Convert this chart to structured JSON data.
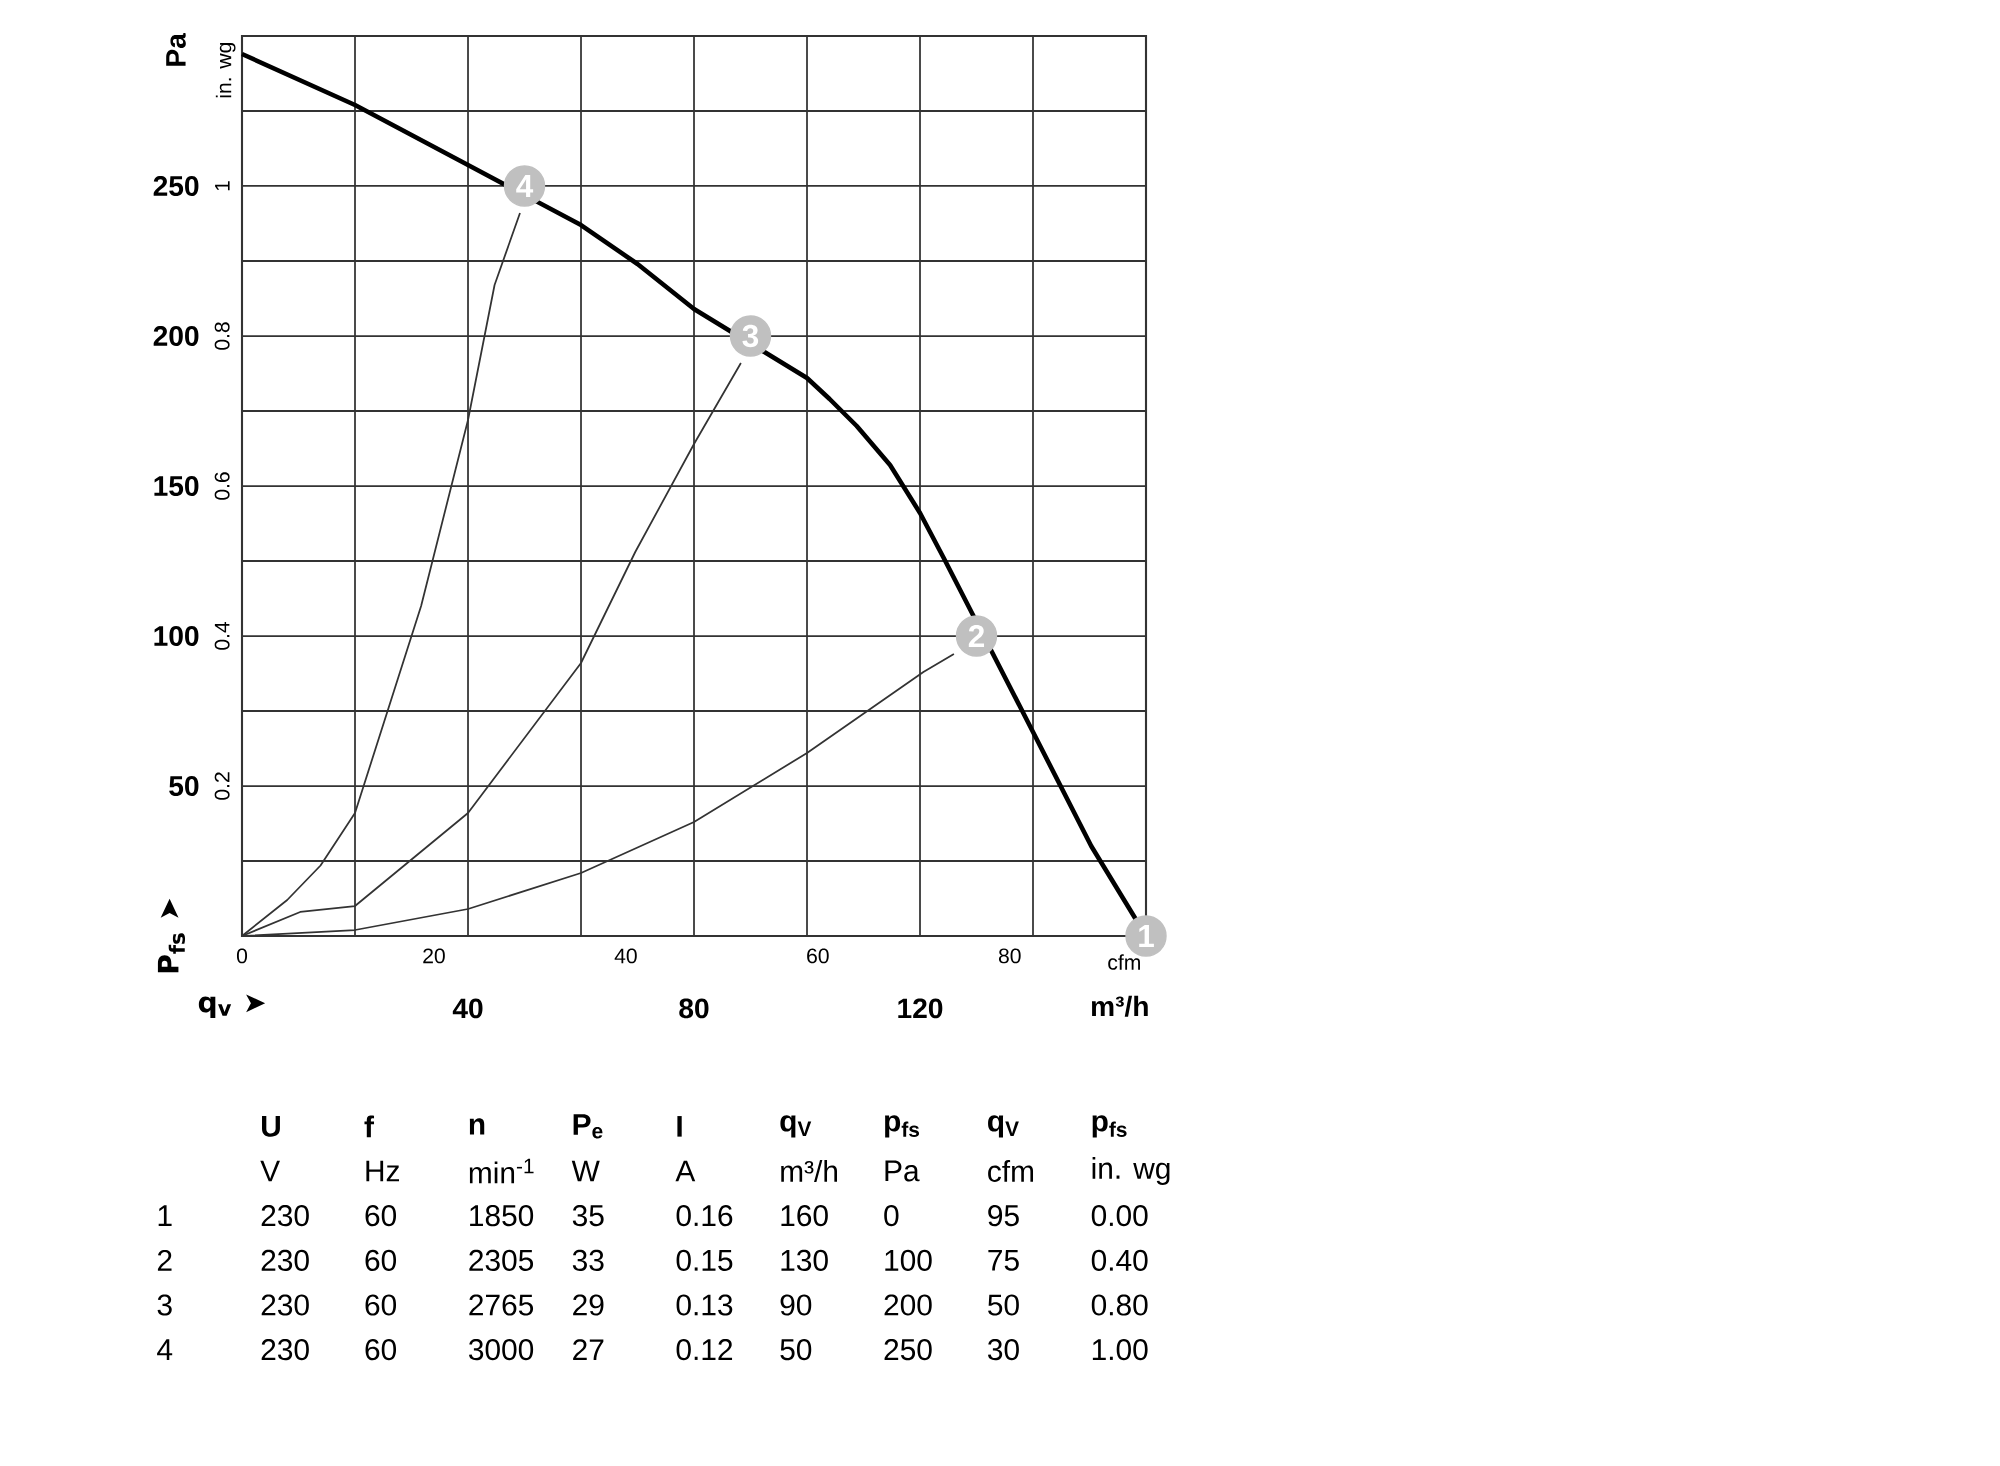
{
  "chart_data": [
    {
      "type": "line",
      "xlabel": "m³/h",
      "ylabel": "Pa",
      "x2label": "cfm",
      "y2label": "in. wg",
      "xlim": [
        0,
        160
      ],
      "xticks": [
        {
          "value": 20,
          "label": null
        },
        40,
        {
          "value": 60,
          "label": null
        },
        80,
        {
          "value": 100,
          "label": null
        },
        120,
        {
          "value": 140,
          "label": null
        }
      ],
      "ylim": [
        0,
        300
      ],
      "yticks": [
        {
          "value": 25,
          "label": null
        },
        50,
        {
          "value": 75,
          "label": null
        },
        100,
        {
          "value": 125,
          "label": null
        },
        150,
        {
          "value": 175,
          "label": null
        },
        200,
        {
          "value": 225,
          "label": null
        },
        250,
        {
          "value": 275,
          "label": null
        }
      ],
      "x2lim": [
        0,
        94.2
      ],
      "x2ticks": [
        0,
        20,
        40,
        60,
        80
      ],
      "y2lim": [
        0,
        1.2
      ],
      "y2ticks": [
        0.2,
        0.4,
        0.6,
        0.8,
        1
      ],
      "grid": true,
      "annotations": [
        "P$_{fs}$ ➤",
        "q$_{v}$ ➤",
        "1",
        "2",
        "3",
        "4",
        "U",
        "f",
        "n",
        "P$_{e}$",
        "I",
        "q$_{V}$",
        "p$_{fs}$",
        "q$_{V}$",
        "p$_{fs}$",
        "V",
        "Hz",
        "min$^{-1}$",
        "W",
        "A",
        "m³/h",
        "Pa",
        "cfm",
        "in. wg",
        "1",
        "230",
        "60",
        "1850",
        "35",
        "0.16",
        "160",
        "0",
        "95",
        "0.00",
        "2",
        "230",
        "60",
        "2305",
        "33",
        "0.15",
        "130",
        "100",
        "75",
        "0.40",
        "3",
        "230",
        "60",
        "2765",
        "29",
        "0.13",
        "90",
        "200",
        "50",
        "0.80",
        "4",
        "230",
        "60",
        "3000",
        "27",
        "0.12",
        "50",
        "250",
        "30",
        "1.00"
      ],
      "series": [
        {
          "type": "line",
          "color": "#000000",
          "x": [
            0,
            20,
            40,
            60,
            70,
            80,
            100,
            104,
            108.8,
            114.7,
            120,
            124.2,
            140,
            150.3,
            160
          ],
          "values": [
            294,
            277,
            257,
            237,
            224,
            209,
            186,
            179,
            170,
            157,
            141,
            126,
            68,
            30,
            0
          ]
        },
        {
          "type": "line",
          "color": "#333333",
          "x": [
            0,
            8,
            13.9,
            20,
            31.7,
            40,
            44.7,
            49.2
          ],
          "values": [
            0,
            12,
            23.5,
            41,
            110,
            172,
            217,
            241
          ]
        },
        {
          "type": "line",
          "color": "#333333",
          "x": [
            0,
            10.3,
            20,
            40,
            60,
            69.6,
            80,
            88.3
          ],
          "values": [
            0,
            8,
            10,
            41,
            91,
            128,
            164,
            191
          ]
        },
        {
          "type": "line",
          "color": "#333333",
          "x": [
            0,
            20,
            40,
            60,
            80,
            100,
            120.6,
            126
          ],
          "values": [
            0,
            2,
            9,
            21,
            38,
            61,
            88,
            94
          ]
        },
        {
          "type": "scatter",
          "marker": "circle",
          "color": "#c0c0c0",
          "x": [
            160,
            130,
            90,
            50
          ],
          "values": [
            0,
            100,
            200,
            250
          ]
        }
      ]
    }
  ]
}
